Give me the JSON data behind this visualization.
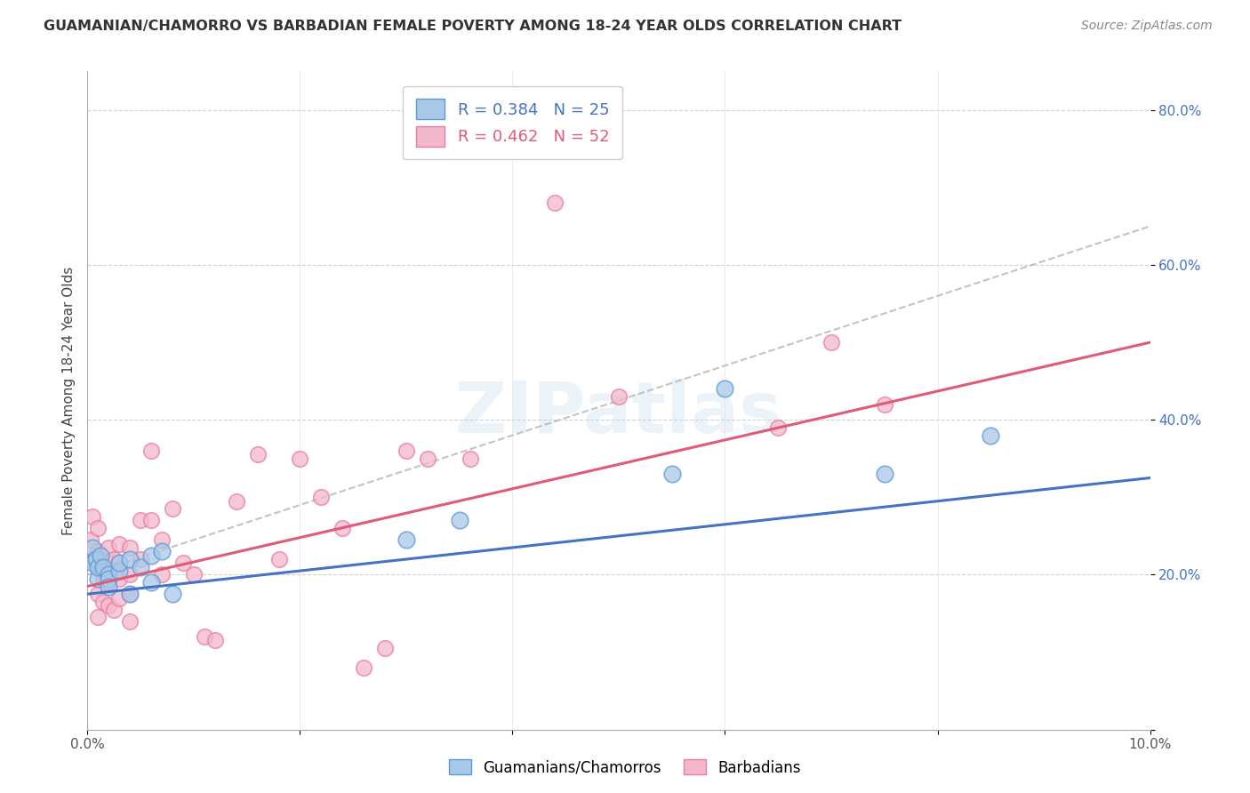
{
  "title": "GUAMANIAN/CHAMORRO VS BARBADIAN FEMALE POVERTY AMONG 18-24 YEAR OLDS CORRELATION CHART",
  "source": "Source: ZipAtlas.com",
  "ylabel": "Female Poverty Among 18-24 Year Olds",
  "xlim": [
    0,
    0.1
  ],
  "ylim": [
    0,
    0.85
  ],
  "xticks": [
    0.0,
    0.02,
    0.04,
    0.06,
    0.08,
    0.1
  ],
  "xticklabels": [
    "0.0%",
    "",
    "",
    "",
    "",
    "10.0%"
  ],
  "yticks": [
    0.0,
    0.2,
    0.4,
    0.6,
    0.8
  ],
  "yticklabels": [
    "",
    "20.0%",
    "40.0%",
    "60.0%",
    "80.0%"
  ],
  "legend1_label": "R = 0.384   N = 25",
  "legend2_label": "R = 0.462   N = 52",
  "blue_color": "#a8c8e8",
  "pink_color": "#f4b8cc",
  "blue_edge_color": "#5b9bd5",
  "pink_edge_color": "#e87da0",
  "blue_line_color": "#4472c4",
  "pink_line_color": "#e05a7a",
  "dash_line_color": "#aaaaaa",
  "watermark": "ZIPatlas",
  "bottom_label1": "Guamanians/Chamorros",
  "bottom_label2": "Barbadians",
  "guam_x": [
    0.0005,
    0.0005,
    0.0008,
    0.001,
    0.001,
    0.0012,
    0.0015,
    0.002,
    0.002,
    0.002,
    0.003,
    0.003,
    0.004,
    0.004,
    0.005,
    0.006,
    0.006,
    0.007,
    0.008,
    0.03,
    0.035,
    0.055,
    0.06,
    0.075,
    0.085
  ],
  "guam_y": [
    0.235,
    0.215,
    0.22,
    0.195,
    0.21,
    0.225,
    0.21,
    0.2,
    0.195,
    0.185,
    0.205,
    0.215,
    0.175,
    0.22,
    0.21,
    0.225,
    0.19,
    0.23,
    0.175,
    0.245,
    0.27,
    0.33,
    0.44,
    0.33,
    0.38
  ],
  "barb_x": [
    0.0003,
    0.0005,
    0.0005,
    0.001,
    0.001,
    0.001,
    0.001,
    0.001,
    0.0012,
    0.0015,
    0.0015,
    0.002,
    0.002,
    0.002,
    0.002,
    0.0025,
    0.0025,
    0.003,
    0.003,
    0.003,
    0.003,
    0.004,
    0.004,
    0.004,
    0.004,
    0.005,
    0.005,
    0.006,
    0.006,
    0.007,
    0.007,
    0.008,
    0.009,
    0.01,
    0.011,
    0.012,
    0.014,
    0.016,
    0.018,
    0.02,
    0.022,
    0.024,
    0.026,
    0.028,
    0.03,
    0.032,
    0.036,
    0.044,
    0.05,
    0.065,
    0.07,
    0.075
  ],
  "barb_y": [
    0.245,
    0.275,
    0.22,
    0.26,
    0.23,
    0.21,
    0.175,
    0.145,
    0.22,
    0.195,
    0.165,
    0.235,
    0.215,
    0.19,
    0.16,
    0.22,
    0.155,
    0.24,
    0.215,
    0.195,
    0.17,
    0.235,
    0.2,
    0.175,
    0.14,
    0.27,
    0.22,
    0.36,
    0.27,
    0.245,
    0.2,
    0.285,
    0.215,
    0.2,
    0.12,
    0.115,
    0.295,
    0.355,
    0.22,
    0.35,
    0.3,
    0.26,
    0.08,
    0.105,
    0.36,
    0.35,
    0.35,
    0.68,
    0.43,
    0.39,
    0.5,
    0.42
  ],
  "guam_R": 0.384,
  "guam_N": 25,
  "barb_R": 0.462,
  "barb_N": 52,
  "blue_trend": [
    0.175,
    0.325
  ],
  "pink_trend": [
    0.185,
    0.5
  ],
  "dash_trend": [
    0.2,
    0.65
  ]
}
